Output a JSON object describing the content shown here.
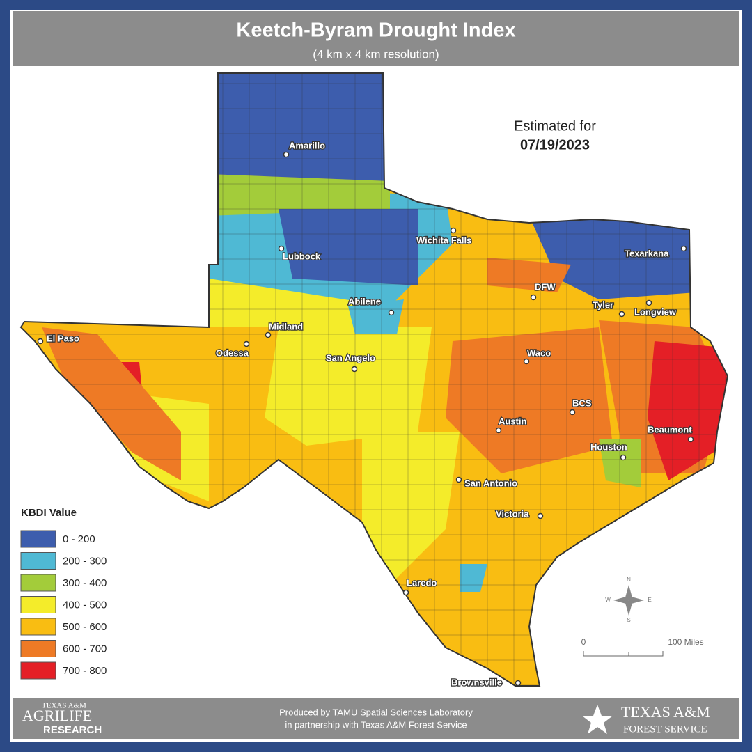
{
  "header": {
    "title": "Keetch-Byram Drought Index",
    "subtitle": "(4 km x 4 km resolution)"
  },
  "estimate": {
    "label": "Estimated for",
    "date": "07/19/2023"
  },
  "cities": [
    "Amarillo",
    "Lubbock",
    "Wichita Falls",
    "Texarkana",
    "DFW",
    "Abilene",
    "Tyler",
    "Longview",
    "Midland",
    "El Paso",
    "Odessa",
    "San Angelo",
    "Waco",
    "BCS",
    "Austin",
    "Beaumont",
    "Houston",
    "San Antonio",
    "Victoria",
    "Laredo",
    "Brownsville"
  ],
  "legend": {
    "title": "KBDI Value",
    "items": [
      {
        "label": "0 - 200",
        "color": "#3d5dad"
      },
      {
        "label": "200 - 300",
        "color": "#4fb9d4"
      },
      {
        "label": "300 - 400",
        "color": "#a3cc3a"
      },
      {
        "label": "400 - 500",
        "color": "#f4ec2a"
      },
      {
        "label": "500 - 600",
        "color": "#f9bd12"
      },
      {
        "label": "600 - 700",
        "color": "#ee7a25"
      },
      {
        "label": "700 - 800",
        "color": "#e41f26"
      }
    ]
  },
  "compass": {
    "n": "N",
    "e": "E",
    "s": "S",
    "w": "W"
  },
  "scale": {
    "start": "0",
    "end": "100 Miles"
  },
  "footer": {
    "line1": "Produced by TAMU Spatial Sciences Laboratory",
    "line2": "in partnership with Texas A&M Forest Service",
    "left_logo": {
      "top": "TEXAS A&M",
      "middle": "AGRILIFE",
      "bottom": "RESEARCH"
    },
    "right_logo": {
      "top": "TEXAS A&M",
      "bottom": "FOREST SERVICE"
    }
  }
}
